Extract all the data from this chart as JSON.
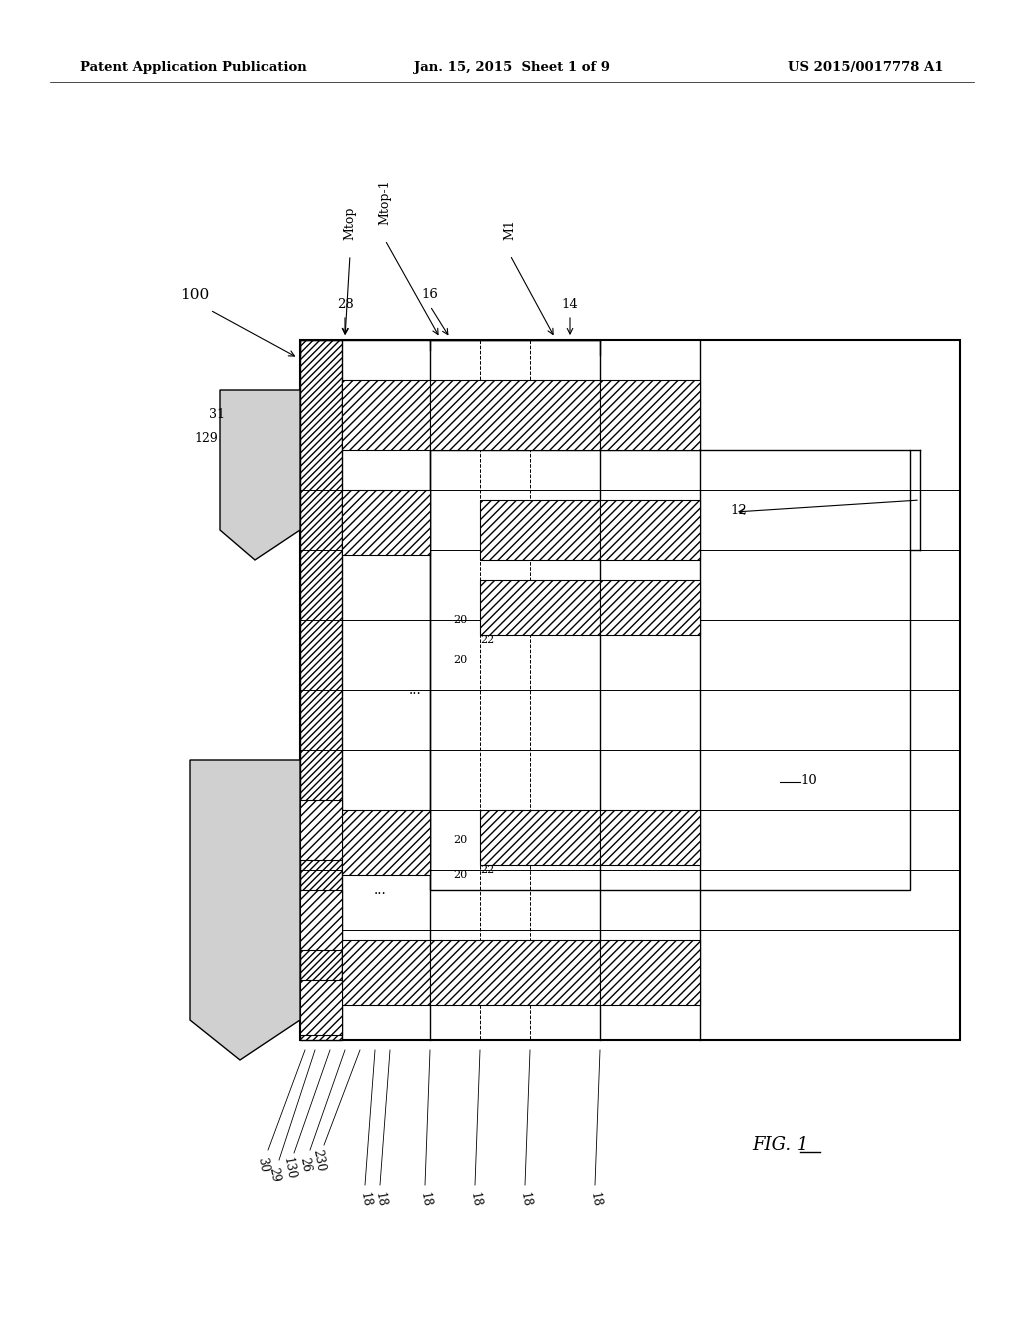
{
  "background_color": "#ffffff",
  "header_left": "Patent Application Publication",
  "header_center": "Jan. 15, 2015  Sheet 1 of 9",
  "header_right": "US 2015/0017778 A1",
  "fig_label": "FIG. 1"
}
